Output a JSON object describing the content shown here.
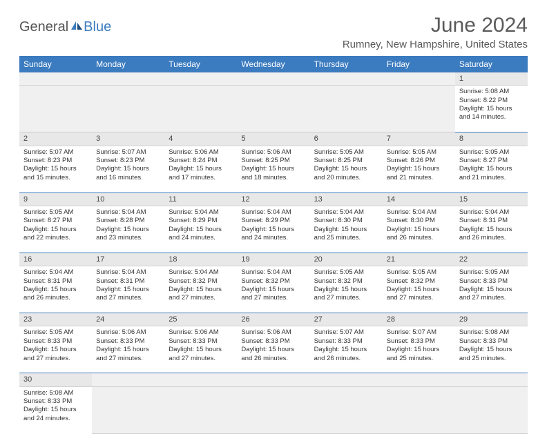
{
  "logo": {
    "part1": "General",
    "part2": "Blue"
  },
  "title": "June 2024",
  "location": "Rumney, New Hampshire, United States",
  "colors": {
    "header_bg": "#3b7bbf",
    "header_text": "#ffffff",
    "numrow_bg": "#e8e8e8",
    "border": "#3b7bbf"
  },
  "day_headers": [
    "Sunday",
    "Monday",
    "Tuesday",
    "Wednesday",
    "Thursday",
    "Friday",
    "Saturday"
  ],
  "weeks": [
    {
      "numbers": [
        "",
        "",
        "",
        "",
        "",
        "",
        "1"
      ],
      "cells": [
        null,
        null,
        null,
        null,
        null,
        null,
        {
          "sunrise": "Sunrise: 5:08 AM",
          "sunset": "Sunset: 8:22 PM",
          "d1": "Daylight: 15 hours",
          "d2": "and 14 minutes."
        }
      ]
    },
    {
      "numbers": [
        "2",
        "3",
        "4",
        "5",
        "6",
        "7",
        "8"
      ],
      "cells": [
        {
          "sunrise": "Sunrise: 5:07 AM",
          "sunset": "Sunset: 8:23 PM",
          "d1": "Daylight: 15 hours",
          "d2": "and 15 minutes."
        },
        {
          "sunrise": "Sunrise: 5:07 AM",
          "sunset": "Sunset: 8:23 PM",
          "d1": "Daylight: 15 hours",
          "d2": "and 16 minutes."
        },
        {
          "sunrise": "Sunrise: 5:06 AM",
          "sunset": "Sunset: 8:24 PM",
          "d1": "Daylight: 15 hours",
          "d2": "and 17 minutes."
        },
        {
          "sunrise": "Sunrise: 5:06 AM",
          "sunset": "Sunset: 8:25 PM",
          "d1": "Daylight: 15 hours",
          "d2": "and 18 minutes."
        },
        {
          "sunrise": "Sunrise: 5:05 AM",
          "sunset": "Sunset: 8:25 PM",
          "d1": "Daylight: 15 hours",
          "d2": "and 20 minutes."
        },
        {
          "sunrise": "Sunrise: 5:05 AM",
          "sunset": "Sunset: 8:26 PM",
          "d1": "Daylight: 15 hours",
          "d2": "and 21 minutes."
        },
        {
          "sunrise": "Sunrise: 5:05 AM",
          "sunset": "Sunset: 8:27 PM",
          "d1": "Daylight: 15 hours",
          "d2": "and 21 minutes."
        }
      ]
    },
    {
      "numbers": [
        "9",
        "10",
        "11",
        "12",
        "13",
        "14",
        "15"
      ],
      "cells": [
        {
          "sunrise": "Sunrise: 5:05 AM",
          "sunset": "Sunset: 8:27 PM",
          "d1": "Daylight: 15 hours",
          "d2": "and 22 minutes."
        },
        {
          "sunrise": "Sunrise: 5:04 AM",
          "sunset": "Sunset: 8:28 PM",
          "d1": "Daylight: 15 hours",
          "d2": "and 23 minutes."
        },
        {
          "sunrise": "Sunrise: 5:04 AM",
          "sunset": "Sunset: 8:29 PM",
          "d1": "Daylight: 15 hours",
          "d2": "and 24 minutes."
        },
        {
          "sunrise": "Sunrise: 5:04 AM",
          "sunset": "Sunset: 8:29 PM",
          "d1": "Daylight: 15 hours",
          "d2": "and 24 minutes."
        },
        {
          "sunrise": "Sunrise: 5:04 AM",
          "sunset": "Sunset: 8:30 PM",
          "d1": "Daylight: 15 hours",
          "d2": "and 25 minutes."
        },
        {
          "sunrise": "Sunrise: 5:04 AM",
          "sunset": "Sunset: 8:30 PM",
          "d1": "Daylight: 15 hours",
          "d2": "and 26 minutes."
        },
        {
          "sunrise": "Sunrise: 5:04 AM",
          "sunset": "Sunset: 8:31 PM",
          "d1": "Daylight: 15 hours",
          "d2": "and 26 minutes."
        }
      ]
    },
    {
      "numbers": [
        "16",
        "17",
        "18",
        "19",
        "20",
        "21",
        "22"
      ],
      "cells": [
        {
          "sunrise": "Sunrise: 5:04 AM",
          "sunset": "Sunset: 8:31 PM",
          "d1": "Daylight: 15 hours",
          "d2": "and 26 minutes."
        },
        {
          "sunrise": "Sunrise: 5:04 AM",
          "sunset": "Sunset: 8:31 PM",
          "d1": "Daylight: 15 hours",
          "d2": "and 27 minutes."
        },
        {
          "sunrise": "Sunrise: 5:04 AM",
          "sunset": "Sunset: 8:32 PM",
          "d1": "Daylight: 15 hours",
          "d2": "and 27 minutes."
        },
        {
          "sunrise": "Sunrise: 5:04 AM",
          "sunset": "Sunset: 8:32 PM",
          "d1": "Daylight: 15 hours",
          "d2": "and 27 minutes."
        },
        {
          "sunrise": "Sunrise: 5:05 AM",
          "sunset": "Sunset: 8:32 PM",
          "d1": "Daylight: 15 hours",
          "d2": "and 27 minutes."
        },
        {
          "sunrise": "Sunrise: 5:05 AM",
          "sunset": "Sunset: 8:32 PM",
          "d1": "Daylight: 15 hours",
          "d2": "and 27 minutes."
        },
        {
          "sunrise": "Sunrise: 5:05 AM",
          "sunset": "Sunset: 8:33 PM",
          "d1": "Daylight: 15 hours",
          "d2": "and 27 minutes."
        }
      ]
    },
    {
      "numbers": [
        "23",
        "24",
        "25",
        "26",
        "27",
        "28",
        "29"
      ],
      "cells": [
        {
          "sunrise": "Sunrise: 5:05 AM",
          "sunset": "Sunset: 8:33 PM",
          "d1": "Daylight: 15 hours",
          "d2": "and 27 minutes."
        },
        {
          "sunrise": "Sunrise: 5:06 AM",
          "sunset": "Sunset: 8:33 PM",
          "d1": "Daylight: 15 hours",
          "d2": "and 27 minutes."
        },
        {
          "sunrise": "Sunrise: 5:06 AM",
          "sunset": "Sunset: 8:33 PM",
          "d1": "Daylight: 15 hours",
          "d2": "and 27 minutes."
        },
        {
          "sunrise": "Sunrise: 5:06 AM",
          "sunset": "Sunset: 8:33 PM",
          "d1": "Daylight: 15 hours",
          "d2": "and 26 minutes."
        },
        {
          "sunrise": "Sunrise: 5:07 AM",
          "sunset": "Sunset: 8:33 PM",
          "d1": "Daylight: 15 hours",
          "d2": "and 26 minutes."
        },
        {
          "sunrise": "Sunrise: 5:07 AM",
          "sunset": "Sunset: 8:33 PM",
          "d1": "Daylight: 15 hours",
          "d2": "and 25 minutes."
        },
        {
          "sunrise": "Sunrise: 5:08 AM",
          "sunset": "Sunset: 8:33 PM",
          "d1": "Daylight: 15 hours",
          "d2": "and 25 minutes."
        }
      ]
    },
    {
      "numbers": [
        "30",
        "",
        "",
        "",
        "",
        "",
        ""
      ],
      "cells": [
        {
          "sunrise": "Sunrise: 5:08 AM",
          "sunset": "Sunset: 8:33 PM",
          "d1": "Daylight: 15 hours",
          "d2": "and 24 minutes."
        },
        null,
        null,
        null,
        null,
        null,
        null
      ]
    }
  ]
}
